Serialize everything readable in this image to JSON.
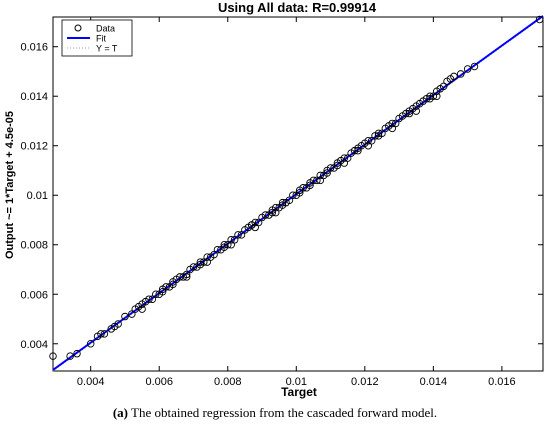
{
  "chart_data": {
    "type": "scatter",
    "title": "Using All data: R=0.99914",
    "xlabel": "Target",
    "ylabel": "Output ~= 1*Target + 4.5e-05",
    "xlim": [
      0.0029,
      0.0172
    ],
    "ylim": [
      0.0029,
      0.0172
    ],
    "x_ticks": [
      "0.004",
      "0.006",
      "0.008",
      "0.01",
      "0.012",
      "0.014",
      "0.016"
    ],
    "y_ticks": [
      "0.004",
      "0.006",
      "0.008",
      "0.01",
      "0.012",
      "0.014",
      "0.016"
    ],
    "grid": false,
    "legend_position": "top-left",
    "legend": [
      {
        "label": "Data",
        "style": "circle-marker",
        "color": "#000000"
      },
      {
        "label": "Fit",
        "style": "solid-line",
        "color": "#0000ff"
      },
      {
        "label": "Y = T",
        "style": "dotted-line",
        "color": "#999999"
      }
    ],
    "fit_line": {
      "slope": 1,
      "intercept": 4.5e-05
    },
    "data_points": [
      [
        0.0029,
        0.0035
      ],
      [
        0.0034,
        0.0035
      ],
      [
        0.0036,
        0.0036
      ],
      [
        0.004,
        0.004
      ],
      [
        0.0042,
        0.0043
      ],
      [
        0.0043,
        0.0044
      ],
      [
        0.0044,
        0.0044
      ],
      [
        0.0046,
        0.0046
      ],
      [
        0.0048,
        0.0048
      ],
      [
        0.005,
        0.0051
      ],
      [
        0.0052,
        0.0052
      ],
      [
        0.0053,
        0.0054
      ],
      [
        0.0054,
        0.0055
      ],
      [
        0.0055,
        0.0056
      ],
      [
        0.0056,
        0.0057
      ],
      [
        0.0057,
        0.0058
      ],
      [
        0.0058,
        0.0058
      ],
      [
        0.0059,
        0.006
      ],
      [
        0.006,
        0.006
      ],
      [
        0.0061,
        0.0062
      ],
      [
        0.0062,
        0.0063
      ],
      [
        0.0063,
        0.0063
      ],
      [
        0.0064,
        0.0064
      ],
      [
        0.0065,
        0.0066
      ],
      [
        0.0066,
        0.0067
      ],
      [
        0.0067,
        0.0067
      ],
      [
        0.0068,
        0.0068
      ],
      [
        0.0069,
        0.007
      ],
      [
        0.007,
        0.0071
      ],
      [
        0.0071,
        0.0071
      ],
      [
        0.0072,
        0.0073
      ],
      [
        0.0073,
        0.0073
      ],
      [
        0.0074,
        0.0075
      ],
      [
        0.0075,
        0.0075
      ],
      [
        0.0076,
        0.0076
      ],
      [
        0.0077,
        0.0078
      ],
      [
        0.0078,
        0.0078
      ],
      [
        0.0079,
        0.008
      ],
      [
        0.008,
        0.008
      ],
      [
        0.0081,
        0.0082
      ],
      [
        0.0082,
        0.0082
      ],
      [
        0.0083,
        0.0084
      ],
      [
        0.0084,
        0.0084
      ],
      [
        0.0085,
        0.0086
      ],
      [
        0.0086,
        0.0087
      ],
      [
        0.0087,
        0.0088
      ],
      [
        0.0088,
        0.0089
      ],
      [
        0.0089,
        0.0089
      ],
      [
        0.009,
        0.0091
      ],
      [
        0.0091,
        0.0092
      ],
      [
        0.0092,
        0.0092
      ],
      [
        0.0093,
        0.0094
      ],
      [
        0.0094,
        0.0095
      ],
      [
        0.0095,
        0.0095
      ],
      [
        0.0096,
        0.0097
      ],
      [
        0.0097,
        0.0097
      ],
      [
        0.0098,
        0.0098
      ],
      [
        0.0099,
        0.01
      ],
      [
        0.01,
        0.01
      ],
      [
        0.0101,
        0.0102
      ],
      [
        0.0102,
        0.0103
      ],
      [
        0.0103,
        0.0103
      ],
      [
        0.0104,
        0.0105
      ],
      [
        0.0105,
        0.0106
      ],
      [
        0.0106,
        0.0106
      ],
      [
        0.0107,
        0.0108
      ],
      [
        0.0108,
        0.0108
      ],
      [
        0.0109,
        0.011
      ],
      [
        0.011,
        0.0111
      ],
      [
        0.0111,
        0.0111
      ],
      [
        0.0112,
        0.0113
      ],
      [
        0.0113,
        0.0114
      ],
      [
        0.0114,
        0.0115
      ],
      [
        0.0115,
        0.0115
      ],
      [
        0.0116,
        0.0117
      ],
      [
        0.0117,
        0.0118
      ],
      [
        0.0118,
        0.0118
      ],
      [
        0.0119,
        0.012
      ],
      [
        0.012,
        0.0121
      ],
      [
        0.0121,
        0.0122
      ],
      [
        0.0122,
        0.0122
      ],
      [
        0.0123,
        0.0124
      ],
      [
        0.0124,
        0.0125
      ],
      [
        0.0125,
        0.0125
      ],
      [
        0.0126,
        0.0127
      ],
      [
        0.0127,
        0.0128
      ],
      [
        0.0128,
        0.0129
      ],
      [
        0.0129,
        0.0129
      ],
      [
        0.013,
        0.0131
      ],
      [
        0.0131,
        0.0132
      ],
      [
        0.0132,
        0.0133
      ],
      [
        0.0133,
        0.0133
      ],
      [
        0.0134,
        0.0135
      ],
      [
        0.0135,
        0.0136
      ],
      [
        0.0136,
        0.0137
      ],
      [
        0.0137,
        0.0138
      ],
      [
        0.0138,
        0.0139
      ],
      [
        0.0139,
        0.014
      ],
      [
        0.014,
        0.014
      ],
      [
        0.0141,
        0.0142
      ],
      [
        0.0142,
        0.0143
      ],
      [
        0.0143,
        0.0144
      ],
      [
        0.0144,
        0.0146
      ],
      [
        0.0145,
        0.0147
      ],
      [
        0.0146,
        0.0148
      ],
      [
        0.0148,
        0.0149
      ],
      [
        0.015,
        0.0151
      ],
      [
        0.0152,
        0.0152
      ],
      [
        0.0171,
        0.0171
      ],
      [
        0.0055,
        0.0054
      ],
      [
        0.0061,
        0.0061
      ],
      [
        0.0068,
        0.0067
      ],
      [
        0.0074,
        0.0073
      ],
      [
        0.0081,
        0.008
      ],
      [
        0.0088,
        0.0087
      ],
      [
        0.0094,
        0.0093
      ],
      [
        0.0101,
        0.0101
      ],
      [
        0.0107,
        0.0106
      ],
      [
        0.0114,
        0.0113
      ],
      [
        0.0121,
        0.012
      ],
      [
        0.0128,
        0.0127
      ],
      [
        0.0135,
        0.0134
      ],
      [
        0.0141,
        0.014
      ],
      [
        0.0047,
        0.0047
      ],
      [
        0.0064,
        0.0065
      ],
      [
        0.0079,
        0.0079
      ],
      [
        0.0093,
        0.0093
      ],
      [
        0.0109,
        0.0109
      ],
      [
        0.0124,
        0.0124
      ],
      [
        0.0139,
        0.0139
      ],
      [
        0.0096,
        0.0096
      ],
      [
        0.0112,
        0.0112
      ],
      [
        0.0087,
        0.0088
      ],
      [
        0.0072,
        0.0072
      ],
      [
        0.0104,
        0.0104
      ],
      [
        0.0133,
        0.0134
      ],
      [
        0.0118,
        0.0119
      ]
    ]
  },
  "caption": {
    "label": "(a)",
    "text": " The obtained regression from the cascaded forward model."
  }
}
